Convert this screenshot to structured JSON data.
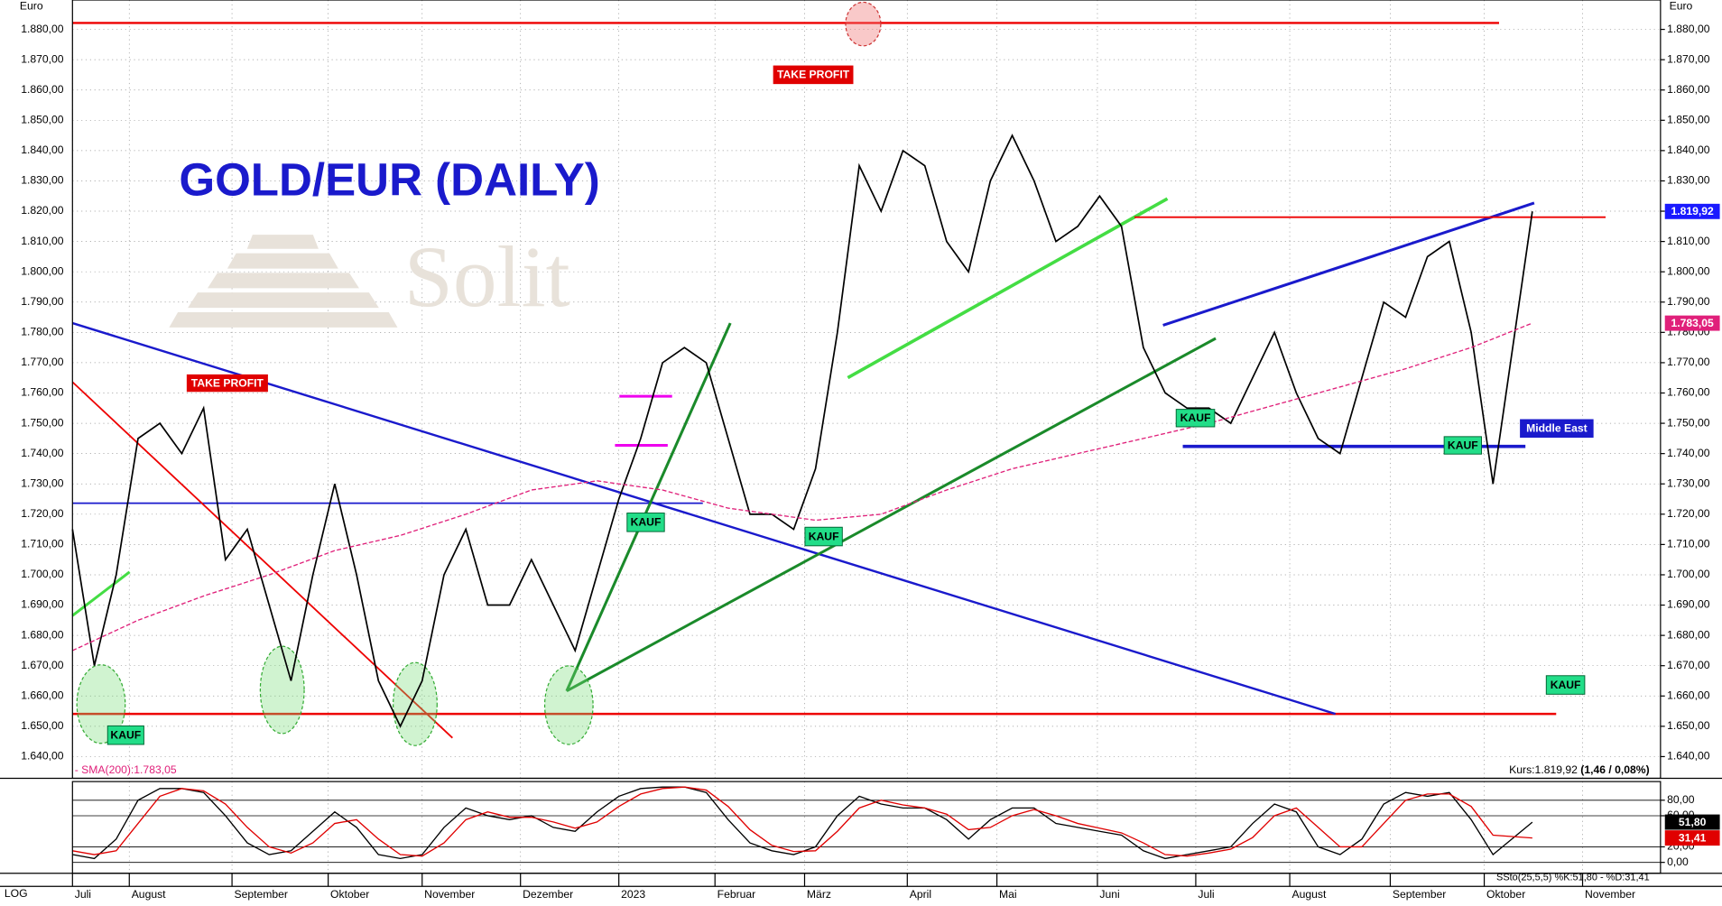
{
  "chart_data": [
    {
      "type": "line",
      "title": "GOLD/EUR (DAILY)",
      "y_label": "Euro",
      "log_button": "LOG",
      "watermark": "Solit",
      "grid": true,
      "x": [
        0,
        1,
        2,
        3,
        4,
        5,
        6,
        7,
        8,
        9,
        10,
        11,
        12,
        13,
        14,
        15,
        16,
        17,
        18,
        19,
        20,
        21,
        22,
        23,
        24,
        25,
        26,
        27,
        28,
        29,
        30,
        31,
        32,
        33,
        34,
        35,
        36,
        37,
        38,
        39,
        40,
        41,
        42,
        43,
        44,
        45,
        46,
        47,
        48,
        49,
        50,
        51,
        52,
        53,
        54,
        55,
        56,
        57,
        58,
        59,
        60,
        61,
        62,
        63,
        64,
        65,
        66.8
      ],
      "series": [
        {
          "color": "#000000",
          "values": [
            1715,
            1670,
            1700,
            1745,
            1750,
            1740,
            1755,
            1705,
            1715,
            1690,
            1665,
            1700,
            1730,
            1700,
            1665,
            1650,
            1665,
            1700,
            1715,
            1690,
            1690,
            1705,
            1690,
            1675,
            1700,
            1725,
            1745,
            1770,
            1775,
            1770,
            1745,
            1720,
            1720,
            1715,
            1735,
            1780,
            1835,
            1820,
            1840,
            1835,
            1810,
            1800,
            1830,
            1845,
            1830,
            1810,
            1815,
            1825,
            1815,
            1775,
            1760,
            1755,
            1755,
            1750,
            1765,
            1780,
            1760,
            1745,
            1740,
            1765,
            1790,
            1785,
            1805,
            1810,
            1780,
            1730,
            1819.92
          ]
        },
        {
          "name": "SMA(200)",
          "color": "#e0207a",
          "dashed": true,
          "x": [
            0,
            3,
            6,
            9,
            12,
            15,
            18,
            21,
            24,
            27,
            30,
            34,
            37,
            40,
            43,
            46,
            49,
            52,
            55,
            58,
            61,
            64,
            66.8
          ],
          "values": [
            1675,
            1685,
            1693,
            1700,
            1708,
            1713,
            1720,
            1728,
            1731,
            1728,
            1722,
            1718,
            1720,
            1728,
            1735,
            1740,
            1745,
            1750,
            1756,
            1762,
            1768,
            1775,
            1783.05
          ]
        }
      ],
      "price_tags": [
        {
          "value": 1819.92,
          "label": "1.819,92",
          "color": "#1a1aff"
        },
        {
          "value": 1783.05,
          "label": "1.783,05",
          "color": "#e0207a"
        }
      ],
      "sma_label": "- SMA(200):1.783,05",
      "kurs_label": "Kurs:1.819,92",
      "kurs_change": "(1,46 / 0,08%)",
      "annotations": [
        "TAKE PROFIT",
        "TAKE PROFIT",
        "KAUF",
        "KAUF",
        "KAUF",
        "KAUF",
        "KAUF",
        "KAUF",
        "Middle East"
      ],
      "xlim": [
        0,
        72.6
      ],
      "ylim": [
        1633.2,
        1889.7
      ],
      "xticks": [
        {
          "value": 0,
          "label": "Juli"
        },
        {
          "value": 2.6,
          "label": "August"
        },
        {
          "value": 7.3,
          "label": "September"
        },
        {
          "value": 11.7,
          "label": "Oktober"
        },
        {
          "value": 16.0,
          "label": "November"
        },
        {
          "value": 20.5,
          "label": "Dezember"
        },
        {
          "value": 25.0,
          "label": "2023"
        },
        {
          "value": 29.4,
          "label": "Februar"
        },
        {
          "value": 33.5,
          "label": "März"
        },
        {
          "value": 38.2,
          "label": "April"
        },
        {
          "value": 42.3,
          "label": "Mai"
        },
        {
          "value": 46.9,
          "label": "Juni"
        },
        {
          "value": 51.4,
          "label": "Juli"
        },
        {
          "value": 55.7,
          "label": "August"
        },
        {
          "value": 60.3,
          "label": "September"
        },
        {
          "value": 64.6,
          "label": "Oktober"
        },
        {
          "value": 69.1,
          "label": "November"
        }
      ],
      "yticks": [
        {
          "value": 1640,
          "label": "1.640,00"
        },
        {
          "value": 1650,
          "label": "1.650,00"
        },
        {
          "value": 1660,
          "label": "1.660,00"
        },
        {
          "value": 1670,
          "label": "1.670,00"
        },
        {
          "value": 1680,
          "label": "1.680,00"
        },
        {
          "value": 1690,
          "label": "1.690,00"
        },
        {
          "value": 1700,
          "label": "1.700,00"
        },
        {
          "value": 1710,
          "label": "1.710,00"
        },
        {
          "value": 1720,
          "label": "1.720,00"
        },
        {
          "value": 1730,
          "label": "1.730,00"
        },
        {
          "value": 1740,
          "label": "1.740,00"
        },
        {
          "value": 1750,
          "label": "1.750,00"
        },
        {
          "value": 1760,
          "label": "1.760,00"
        },
        {
          "value": 1770,
          "label": "1.770,00"
        },
        {
          "value": 1780,
          "label": "1.780,00"
        },
        {
          "value": 1790,
          "label": "1.790,00"
        },
        {
          "value": 1800,
          "label": "1.800,00"
        },
        {
          "value": 1810,
          "label": "1.810,00"
        },
        {
          "value": 1820,
          "label": "1.820,00"
        },
        {
          "value": 1830,
          "label": "1.830,00"
        },
        {
          "value": 1840,
          "label": "1.840,00"
        },
        {
          "value": 1850,
          "label": "1.850,00"
        },
        {
          "value": 1860,
          "label": "1.860,00"
        },
        {
          "value": 1870,
          "label": "1.870,00"
        },
        {
          "value": 1880,
          "label": "1.880,00"
        }
      ]
    },
    {
      "type": "line",
      "legend": "SSto(25,5,5) %K:51,80 - %D:31,41",
      "x": [
        0,
        1,
        2,
        3,
        4,
        5,
        6,
        7,
        8,
        9,
        10,
        11,
        12,
        13,
        14,
        15,
        16,
        17,
        18,
        19,
        20,
        21,
        22,
        23,
        24,
        25,
        26,
        27,
        28,
        29,
        30,
        31,
        32,
        33,
        34,
        35,
        36,
        37,
        38,
        39,
        40,
        41,
        42,
        43,
        44,
        45,
        46,
        47,
        48,
        49,
        50,
        51,
        52,
        53,
        54,
        55,
        56,
        57,
        58,
        59,
        60,
        61,
        62,
        63,
        64,
        65,
        66.8
      ],
      "series": [
        {
          "color": "#000000",
          "values": [
            10,
            5,
            30,
            80,
            95,
            95,
            90,
            60,
            25,
            10,
            15,
            40,
            65,
            45,
            10,
            5,
            10,
            45,
            70,
            60,
            55,
            60,
            45,
            40,
            65,
            85,
            95,
            97,
            97,
            90,
            55,
            25,
            15,
            10,
            20,
            60,
            85,
            75,
            70,
            70,
            55,
            30,
            55,
            70,
            70,
            50,
            45,
            40,
            35,
            15,
            5,
            10,
            15,
            20,
            50,
            75,
            65,
            20,
            10,
            30,
            75,
            90,
            85,
            90,
            55,
            10,
            51.8
          ]
        },
        {
          "color": "#e00000",
          "values": [
            15,
            10,
            15,
            50,
            85,
            95,
            92,
            75,
            45,
            20,
            12,
            25,
            50,
            55,
            30,
            10,
            8,
            25,
            55,
            65,
            58,
            58,
            52,
            44,
            52,
            72,
            88,
            95,
            97,
            93,
            72,
            42,
            22,
            14,
            15,
            40,
            70,
            80,
            74,
            70,
            62,
            42,
            45,
            60,
            68,
            60,
            50,
            44,
            38,
            25,
            10,
            8,
            12,
            17,
            32,
            60,
            70,
            45,
            20,
            20,
            50,
            80,
            88,
            88,
            72,
            35,
            31.41
          ]
        }
      ],
      "price_tags": [
        {
          "value": 51.8,
          "label": "51,80",
          "color": "#000000"
        },
        {
          "value": 31.41,
          "label": "31,41",
          "color": "#e00000"
        }
      ],
      "xlim": [
        0,
        72.6
      ],
      "ylim": [
        -14,
        104
      ],
      "yticks": [
        {
          "value": 80,
          "label": "80,00"
        },
        {
          "value": 60,
          "label": "60,00"
        },
        {
          "value": 20,
          "label": "20,00"
        },
        {
          "value": 0,
          "label": "0,00"
        }
      ]
    }
  ]
}
